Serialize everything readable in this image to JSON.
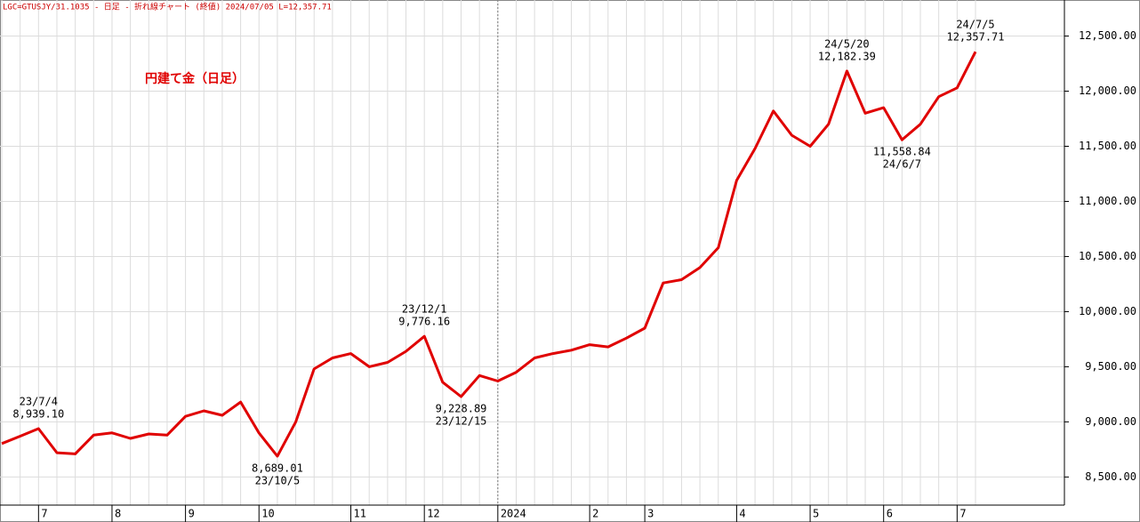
{
  "chart_data": {
    "type": "line",
    "header": "LGC=GTUSJY/31.1035 - 日足 - 折れ線チャート (終値) 2024/07/05 L=12,357.71",
    "title": "円建て金（日足）",
    "categories": [
      null,
      null,
      "7",
      null,
      null,
      null,
      "8",
      null,
      null,
      null,
      "9",
      null,
      null,
      null,
      "10",
      null,
      null,
      null,
      null,
      "11",
      null,
      null,
      null,
      "12",
      null,
      null,
      null,
      "2024",
      null,
      null,
      null,
      null,
      "2",
      null,
      null,
      "3",
      null,
      null,
      null,
      null,
      "4",
      null,
      null,
      null,
      "5",
      null,
      null,
      null,
      "6",
      null,
      null,
      null,
      "7",
      null
    ],
    "series": [
      {
        "name": "円建て金",
        "color": "#e00000",
        "values": [
          8803,
          8870,
          8939.1,
          8720,
          8710,
          8880,
          8900,
          8850,
          8890,
          8880,
          9050,
          9100,
          9060,
          9180,
          8900,
          8689.01,
          9000,
          9480,
          9580,
          9620,
          9500,
          9540,
          9640,
          9776.16,
          9360,
          9228.89,
          9420,
          9370,
          9450,
          9580,
          9620,
          9650,
          9700,
          9680,
          9760,
          9850,
          10260,
          10290,
          10400,
          10580,
          11190,
          11480,
          11820,
          11600,
          11500,
          11700,
          12182.39,
          11800,
          11850,
          11558.84,
          11700,
          11950,
          12030,
          12357.71
        ]
      }
    ],
    "annotations": [
      {
        "date": "23/7/4",
        "value": 8939.1,
        "label": "8,939.10"
      },
      {
        "date": "23/10/5",
        "value": 8689.01,
        "label": "8,689.01"
      },
      {
        "date": "23/12/1",
        "value": 9776.16,
        "label": "9,776.16"
      },
      {
        "date": "23/12/15",
        "value": 9228.89,
        "label": "9,228.89"
      },
      {
        "date": "24/5/20",
        "value": 12182.39,
        "label": "12,182.39"
      },
      {
        "date": "24/6/7",
        "value": 11558.84,
        "label": "11,558.84"
      },
      {
        "date": "24/7/5",
        "value": 12357.71,
        "label": "12,357.71"
      }
    ],
    "ylim": [
      8245,
      12827
    ],
    "yticks": [
      {
        "value": 8500,
        "label": "8,500.00"
      },
      {
        "value": 9000,
        "label": "9,000.00"
      },
      {
        "value": 9500,
        "label": "9,500.00"
      },
      {
        "value": 10000,
        "label": "10,000.00"
      },
      {
        "value": 10500,
        "label": "10,500.00"
      },
      {
        "value": 11000,
        "label": "11,000.00"
      },
      {
        "value": 11500,
        "label": "11,500.00"
      },
      {
        "value": 12000,
        "label": "12,000.00"
      },
      {
        "value": 12500,
        "label": "12,500.00"
      }
    ],
    "grid": true
  }
}
